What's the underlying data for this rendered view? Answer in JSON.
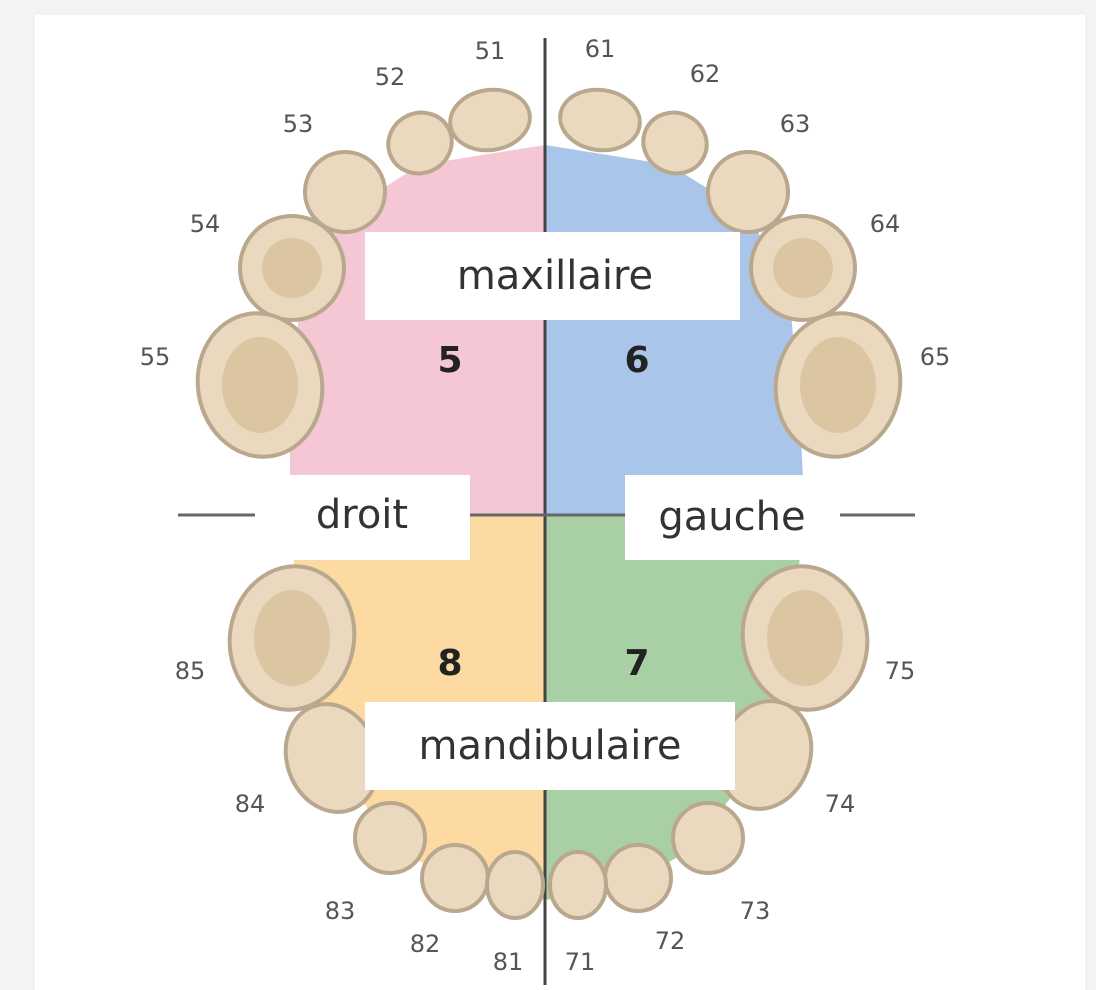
{
  "labels": {
    "upper": "maxillaire",
    "lower": "mandibulaire",
    "right_side": "droit",
    "left_side": "gauche"
  },
  "quadrants": [
    "5",
    "6",
    "7",
    "8"
  ],
  "teeth": [
    "51",
    "52",
    "53",
    "54",
    "55",
    "61",
    "62",
    "63",
    "64",
    "65",
    "71",
    "72",
    "73",
    "74",
    "75",
    "81",
    "82",
    "83",
    "84",
    "85"
  ]
}
